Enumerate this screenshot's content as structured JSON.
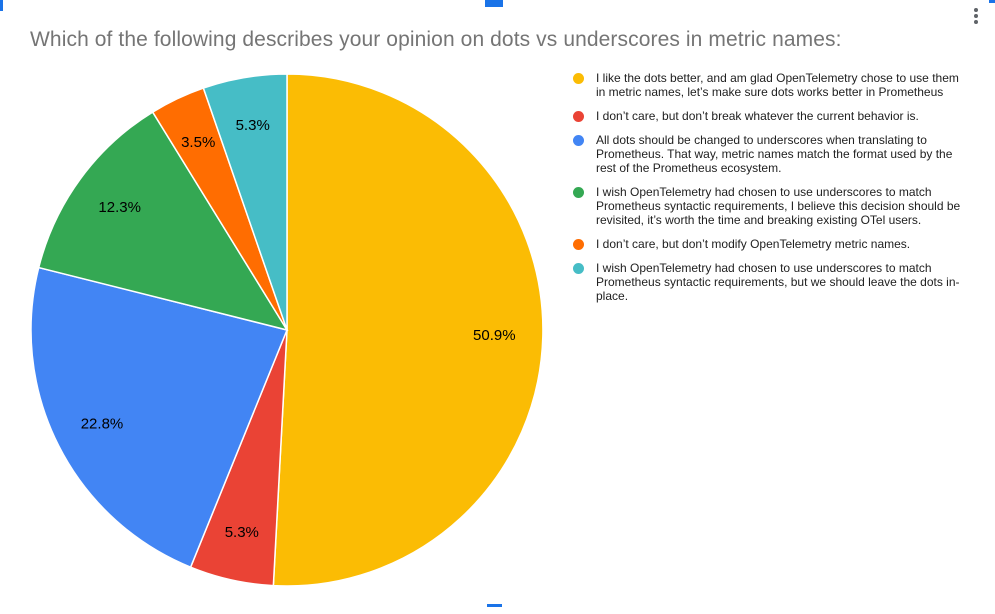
{
  "header": {
    "title": "Which of the following describes your opinion on dots vs underscores in metric names:"
  },
  "chart_data": {
    "type": "pie",
    "title": "Which of the following describes your opinion on dots vs underscores in metric names:",
    "categories": [
      "I like the dots better, and am glad OpenTelemetry chose to use them in metric names, let’s make sure dots works better in Prometheus",
      "I don’t care, but don’t break whatever the current behavior is.",
      "All dots should be changed to underscores when translating to Prometheus. That way, metric names match the format used by the rest of the Prometheus ecosystem.",
      "I wish OpenTelemetry had chosen to use underscores to match Prometheus syntactic requirements, I believe this decision should be revisited, it’s worth the time and breaking existing OTel users.",
      "I don’t care, but don’t modify OpenTelemetry metric names.",
      "I wish OpenTelemetry had chosen to use underscores to match Prometheus syntactic requirements, but we should leave the dots in-place."
    ],
    "values": [
      50.9,
      5.3,
      22.8,
      12.3,
      3.5,
      5.3
    ],
    "labels": [
      "50.9%",
      "5.3%",
      "22.8%",
      "12.3%",
      "3.5%",
      "5.3%"
    ],
    "colors": [
      "#FBBC04",
      "#EA4335",
      "#4285F4",
      "#34A853",
      "#FF6D01",
      "#46BDC6"
    ],
    "legend_position": "right",
    "start_angle_deg": 0,
    "direction": "clockwise",
    "slice_label_color": "#000000"
  },
  "ui": {
    "more_options_icon": "kebab-vertical-icon",
    "selection_handle_color": "#1A73E8",
    "title_color": "#757575"
  }
}
